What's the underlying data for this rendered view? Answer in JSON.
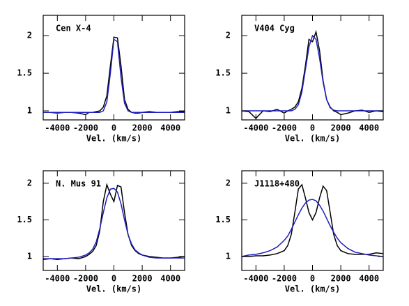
{
  "chart_data": [
    {
      "type": "line",
      "title": "Cen X-4",
      "xlabel": "Vel. (km/s)",
      "x": [
        -5000,
        -4500,
        -4000,
        -3500,
        -3000,
        -2500,
        -2000,
        -1750,
        -1500,
        -1250,
        -1000,
        -750,
        -500,
        -250,
        0,
        250,
        500,
        750,
        1000,
        1250,
        1500,
        1750,
        2000,
        2500,
        3000,
        3500,
        4000,
        4500,
        5000
      ],
      "series": [
        {
          "color": "#000000",
          "values": [
            0.98,
            0.98,
            0.97,
            0.98,
            0.98,
            0.97,
            0.95,
            0.98,
            0.98,
            0.99,
            1.0,
            1.05,
            1.2,
            1.6,
            1.98,
            1.97,
            1.6,
            1.15,
            1.02,
            0.98,
            0.97,
            0.97,
            0.98,
            0.99,
            0.98,
            0.98,
            0.98,
            0.99,
            0.99
          ]
        },
        {
          "color": "#1f1fbf",
          "values": [
            0.98,
            0.98,
            0.98,
            0.98,
            0.98,
            0.98,
            0.98,
            0.98,
            0.98,
            0.98,
            0.98,
            1.0,
            1.12,
            1.5,
            1.95,
            1.92,
            1.45,
            1.1,
            1.0,
            0.98,
            0.98,
            0.98,
            0.98,
            0.98,
            0.98,
            0.98,
            0.98,
            0.98,
            0.98
          ]
        }
      ],
      "xlim": [
        -5000,
        5000
      ],
      "ylim": [
        0.88,
        2.27
      ],
      "xticks": [
        -4000,
        -2000,
        0,
        2000,
        4000
      ],
      "yticks": [
        1,
        1.5,
        2
      ]
    },
    {
      "type": "line",
      "title": "V404 Cyg",
      "xlabel": "Vel. (km/s)",
      "x": [
        -5000,
        -4500,
        -4000,
        -3500,
        -3000,
        -2500,
        -2000,
        -1750,
        -1500,
        -1250,
        -1000,
        -750,
        -500,
        -250,
        0,
        250,
        500,
        750,
        1000,
        1250,
        1500,
        1750,
        2000,
        2500,
        3000,
        3500,
        4000,
        4500,
        5000
      ],
      "series": [
        {
          "color": "#000000",
          "values": [
            1.0,
            0.99,
            0.9,
            1.0,
            0.99,
            1.02,
            0.97,
            1.0,
            1.02,
            1.05,
            1.12,
            1.3,
            1.6,
            1.95,
            1.92,
            2.05,
            1.8,
            1.4,
            1.15,
            1.05,
            1.0,
            0.98,
            0.95,
            0.97,
            1.0,
            1.01,
            0.98,
            1.0,
            0.99
          ]
        },
        {
          "color": "#1f1fbf",
          "values": [
            1.0,
            1.0,
            1.0,
            1.0,
            1.0,
            1.0,
            1.0,
            1.0,
            1.0,
            1.02,
            1.08,
            1.25,
            1.55,
            1.85,
            2.0,
            1.95,
            1.7,
            1.38,
            1.15,
            1.04,
            1.01,
            1.0,
            1.0,
            1.0,
            1.0,
            1.0,
            1.0,
            1.0,
            1.0
          ]
        }
      ],
      "xlim": [
        -5000,
        5000
      ],
      "ylim": [
        0.88,
        2.27
      ],
      "xticks": [
        -4000,
        -2000,
        0,
        2000,
        4000
      ],
      "yticks": [
        1,
        1.5,
        2
      ]
    },
    {
      "type": "line",
      "title": "N. Mus 91",
      "xlabel": "Vel. (km/s)",
      "x": [
        -5000,
        -4500,
        -4000,
        -3500,
        -3000,
        -2500,
        -2000,
        -1750,
        -1500,
        -1250,
        -1000,
        -750,
        -500,
        -250,
        0,
        250,
        500,
        750,
        1000,
        1250,
        1500,
        1750,
        2000,
        2500,
        3000,
        3500,
        4000,
        4500,
        5000
      ],
      "series": [
        {
          "color": "#000000",
          "values": [
            0.96,
            0.97,
            0.96,
            0.97,
            0.98,
            0.97,
            1.0,
            1.03,
            1.07,
            1.15,
            1.35,
            1.75,
            1.98,
            1.85,
            1.75,
            1.97,
            1.95,
            1.6,
            1.3,
            1.15,
            1.08,
            1.04,
            1.02,
            1.0,
            0.99,
            0.98,
            0.98,
            0.99,
            1.0
          ]
        },
        {
          "color": "#1f1fbf",
          "values": [
            0.97,
            0.97,
            0.97,
            0.97,
            0.98,
            0.99,
            1.02,
            1.05,
            1.1,
            1.2,
            1.38,
            1.6,
            1.8,
            1.92,
            1.93,
            1.88,
            1.72,
            1.5,
            1.3,
            1.17,
            1.09,
            1.05,
            1.02,
            0.99,
            0.98,
            0.98,
            0.98,
            0.98,
            0.98
          ]
        }
      ],
      "xlim": [
        -5000,
        5000
      ],
      "ylim": [
        0.81,
        2.17
      ],
      "xticks": [
        -4000,
        -2000,
        0,
        2000,
        4000
      ],
      "yticks": [
        1,
        1.5,
        2
      ]
    },
    {
      "type": "line",
      "title": "J1118+480",
      "xlabel": "Vel. (km/s)",
      "x": [
        -5000,
        -4500,
        -4000,
        -3500,
        -3000,
        -2500,
        -2000,
        -1750,
        -1500,
        -1250,
        -1000,
        -750,
        -500,
        -250,
        0,
        250,
        500,
        750,
        1000,
        1250,
        1500,
        1750,
        2000,
        2500,
        3000,
        3500,
        4000,
        4500,
        5000
      ],
      "series": [
        {
          "color": "#000000",
          "values": [
            1.0,
            1.0,
            1.01,
            1.01,
            1.02,
            1.04,
            1.08,
            1.15,
            1.3,
            1.6,
            1.92,
            1.98,
            1.8,
            1.6,
            1.5,
            1.6,
            1.8,
            1.96,
            1.9,
            1.6,
            1.3,
            1.15,
            1.08,
            1.04,
            1.03,
            1.03,
            1.03,
            1.05,
            1.04
          ]
        },
        {
          "color": "#1f1fbf",
          "values": [
            1.0,
            1.02,
            1.03,
            1.05,
            1.08,
            1.13,
            1.22,
            1.28,
            1.37,
            1.47,
            1.57,
            1.66,
            1.73,
            1.77,
            1.78,
            1.76,
            1.7,
            1.62,
            1.52,
            1.42,
            1.33,
            1.25,
            1.19,
            1.11,
            1.06,
            1.04,
            1.02,
            1.01,
            1.0
          ]
        }
      ],
      "xlim": [
        -5000,
        5000
      ],
      "ylim": [
        0.81,
        2.17
      ],
      "xticks": [
        -4000,
        -2000,
        0,
        2000,
        4000
      ],
      "yticks": [
        1,
        1.5,
        2
      ]
    }
  ]
}
